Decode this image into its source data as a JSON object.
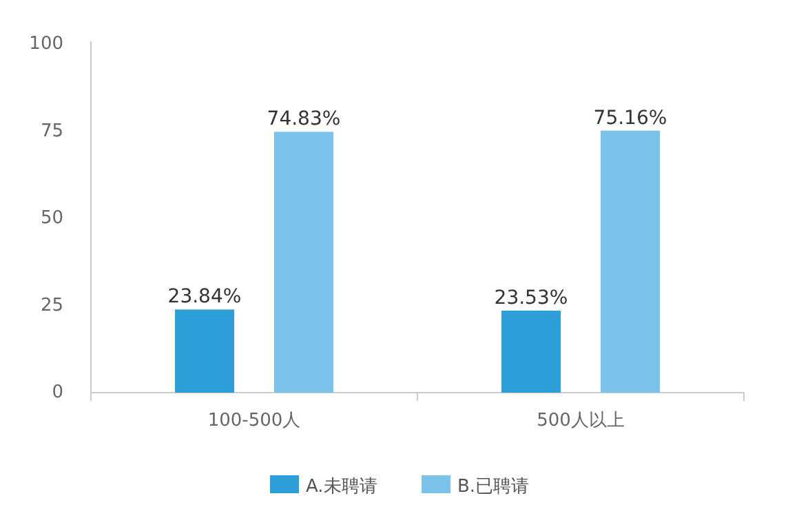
{
  "chart_data": {
    "type": "bar",
    "categories": [
      "100-500人",
      "500人以上"
    ],
    "series": [
      {
        "name": "A.未聘请",
        "color": "#2e9ed8",
        "values": [
          23.84,
          23.53
        ],
        "value_labels": [
          "23.84%",
          "23.53%"
        ]
      },
      {
        "name": "B.已聘请",
        "color": "#7cc3ec",
        "values": [
          74.83,
          75.16
        ],
        "value_labels": [
          "74.83%",
          "75.16%"
        ]
      }
    ],
    "ylim": [
      0,
      100
    ],
    "yticks": [
      0,
      25,
      50,
      75,
      100
    ],
    "grid": false,
    "legend": "bottom"
  }
}
